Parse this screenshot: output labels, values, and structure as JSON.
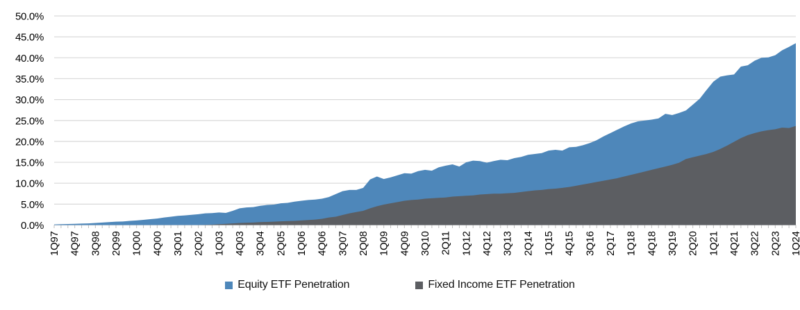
{
  "chart": {
    "title": "",
    "y_axis": {
      "min": 0,
      "max": 50,
      "step": 5,
      "tick_labels": [
        "50.0%",
        "45.0%",
        "40.0%",
        "35.0%",
        "30.0%",
        "25.0%",
        "20.0%",
        "15.0%",
        "10.0%",
        "5.0%",
        "0.0%"
      ]
    },
    "x_axis": {
      "label_every_n_quarters": 3,
      "tick_labels": [
        "1Q97",
        "4Q97",
        "3Q98",
        "2Q99",
        "1Q00",
        "4Q00",
        "3Q01",
        "2Q02",
        "1Q03",
        "4Q03",
        "3Q04",
        "2Q05",
        "1Q06",
        "4Q06",
        "3Q07",
        "2Q08",
        "1Q09",
        "4Q09",
        "3Q10",
        "2Q11",
        "1Q12",
        "4Q12",
        "3Q13",
        "2Q14",
        "1Q15",
        "4Q15",
        "3Q16",
        "2Q17",
        "1Q18",
        "4Q18",
        "3Q19",
        "2Q20",
        "1Q21",
        "4Q21",
        "3Q22",
        "2Q23",
        "1Q24"
      ]
    },
    "colors": {
      "equity_blue": "#4E87BA",
      "fixed_income_gray": "#5C5E62",
      "gridline": "#D9D9D9",
      "tick": "#BFBFBF",
      "axis_text": "#000000"
    }
  },
  "chart_data": {
    "type": "area",
    "title": "",
    "xlabel": "",
    "ylabel": "",
    "ylim": [
      0,
      50
    ],
    "y_tick_format": "percent_one_decimal",
    "grid": "horizontal",
    "legend_position": "bottom",
    "x": [
      "1Q97",
      "2Q97",
      "3Q97",
      "4Q97",
      "1Q98",
      "2Q98",
      "3Q98",
      "4Q98",
      "1Q99",
      "2Q99",
      "3Q99",
      "4Q99",
      "1Q00",
      "2Q00",
      "3Q00",
      "4Q00",
      "1Q01",
      "2Q01",
      "3Q01",
      "4Q01",
      "1Q02",
      "2Q02",
      "3Q02",
      "4Q02",
      "1Q03",
      "2Q03",
      "3Q03",
      "4Q03",
      "1Q04",
      "2Q04",
      "3Q04",
      "4Q04",
      "1Q05",
      "2Q05",
      "3Q05",
      "4Q05",
      "1Q06",
      "2Q06",
      "3Q06",
      "4Q06",
      "1Q07",
      "2Q07",
      "3Q07",
      "4Q07",
      "1Q08",
      "2Q08",
      "3Q08",
      "4Q08",
      "1Q09",
      "2Q09",
      "3Q09",
      "4Q09",
      "1Q10",
      "2Q10",
      "3Q10",
      "4Q10",
      "1Q11",
      "2Q11",
      "3Q11",
      "4Q11",
      "1Q12",
      "2Q12",
      "3Q12",
      "4Q12",
      "1Q13",
      "2Q13",
      "3Q13",
      "4Q13",
      "1Q14",
      "2Q14",
      "3Q14",
      "4Q14",
      "1Q15",
      "2Q15",
      "3Q15",
      "4Q15",
      "1Q16",
      "2Q16",
      "3Q16",
      "4Q16",
      "1Q17",
      "2Q17",
      "3Q17",
      "4Q17",
      "1Q18",
      "2Q18",
      "3Q18",
      "4Q18",
      "1Q19",
      "2Q19",
      "3Q19",
      "4Q19",
      "1Q20",
      "2Q20",
      "3Q20",
      "4Q20",
      "1Q21",
      "2Q21",
      "3Q21",
      "4Q21",
      "1Q22",
      "2Q22",
      "3Q22",
      "4Q22",
      "1Q23",
      "2Q23",
      "3Q23",
      "4Q23",
      "1Q24"
    ],
    "series": [
      {
        "name": "Equity ETF Penetration",
        "color": "#4E87BA",
        "values": [
          0.15,
          0.2,
          0.25,
          0.3,
          0.35,
          0.4,
          0.5,
          0.6,
          0.7,
          0.8,
          0.85,
          1.0,
          1.1,
          1.25,
          1.4,
          1.55,
          1.8,
          2.0,
          2.2,
          2.3,
          2.45,
          2.6,
          2.8,
          2.85,
          3.0,
          2.9,
          3.4,
          4.0,
          4.2,
          4.3,
          4.6,
          4.8,
          4.9,
          5.2,
          5.3,
          5.6,
          5.8,
          6.0,
          6.1,
          6.3,
          6.7,
          7.4,
          8.1,
          8.4,
          8.4,
          8.9,
          10.9,
          11.6,
          11.0,
          11.4,
          11.9,
          12.4,
          12.3,
          12.9,
          13.2,
          13.0,
          13.8,
          14.2,
          14.5,
          14.0,
          15.0,
          15.4,
          15.3,
          14.9,
          15.3,
          15.6,
          15.5,
          16.0,
          16.3,
          16.8,
          17.0,
          17.2,
          17.8,
          18.0,
          17.8,
          18.6,
          18.7,
          19.1,
          19.6,
          20.3,
          21.2,
          22.0,
          22.8,
          23.6,
          24.3,
          24.8,
          25.0,
          25.2,
          25.5,
          26.6,
          26.3,
          26.8,
          27.4,
          28.8,
          30.2,
          32.3,
          34.3,
          35.5,
          35.8,
          36.0,
          37.9,
          38.2,
          39.3,
          40.0,
          40.1,
          40.6,
          41.8,
          42.6,
          43.5
        ]
      },
      {
        "name": "Fixed Income ETF Penetration",
        "color": "#5C5E62",
        "values": [
          0,
          0,
          0,
          0,
          0,
          0,
          0,
          0,
          0,
          0,
          0,
          0,
          0,
          0,
          0,
          0,
          0,
          0,
          0,
          0,
          0,
          0,
          0.05,
          0.1,
          0.2,
          0.3,
          0.4,
          0.5,
          0.55,
          0.6,
          0.7,
          0.75,
          0.8,
          0.9,
          0.95,
          1.0,
          1.1,
          1.2,
          1.3,
          1.5,
          1.8,
          2.0,
          2.4,
          2.8,
          3.1,
          3.4,
          4.0,
          4.5,
          4.9,
          5.2,
          5.5,
          5.8,
          6.0,
          6.1,
          6.3,
          6.4,
          6.5,
          6.6,
          6.8,
          6.9,
          7.0,
          7.1,
          7.3,
          7.4,
          7.5,
          7.5,
          7.6,
          7.7,
          7.9,
          8.1,
          8.3,
          8.4,
          8.6,
          8.7,
          8.9,
          9.1,
          9.4,
          9.7,
          10.0,
          10.3,
          10.6,
          10.9,
          11.2,
          11.6,
          12.0,
          12.4,
          12.8,
          13.2,
          13.6,
          14.0,
          14.4,
          14.9,
          15.8,
          16.2,
          16.6,
          17.0,
          17.5,
          18.2,
          19.0,
          19.9,
          20.8,
          21.5,
          22.0,
          22.4,
          22.7,
          22.9,
          23.3,
          23.2,
          23.7
        ]
      }
    ]
  },
  "legend": {
    "items": [
      {
        "label": "Equity ETF Penetration",
        "color": "#4E87BA"
      },
      {
        "label": "Fixed Income ETF Penetration",
        "color": "#5C5E62"
      }
    ]
  }
}
